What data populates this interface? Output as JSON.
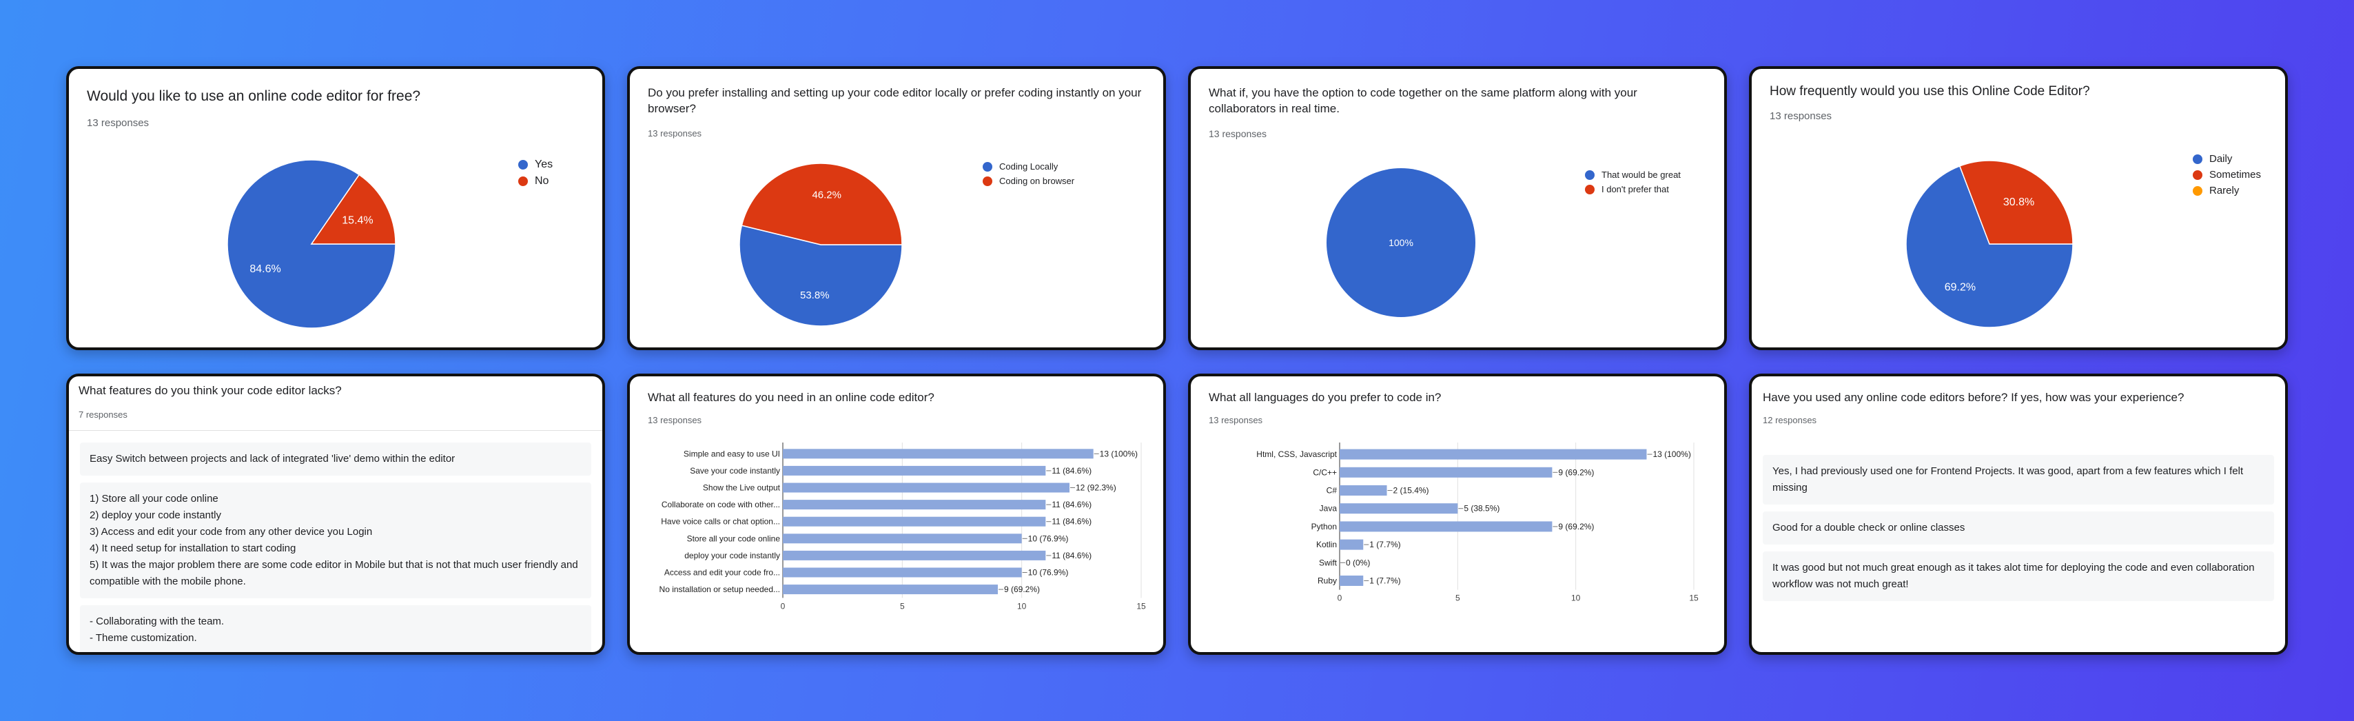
{
  "cards": {
    "c1": {
      "title": "Would you like to use an online code editor for free?",
      "responses": "13 responses",
      "chart": {
        "type": "pie",
        "labels": [
          "Yes",
          "No"
        ],
        "values": [
          84.6,
          15.4
        ],
        "data_labels": [
          "84.6%",
          "15.4%"
        ],
        "colors": [
          "#3366cc",
          "#dc3912"
        ]
      }
    },
    "c2": {
      "title": "Do you prefer installing and setting up your code editor locally or prefer coding instantly on your browser?",
      "responses": "13 responses",
      "chart": {
        "type": "pie",
        "labels": [
          "Coding Locally",
          "Coding on browser"
        ],
        "values": [
          53.8,
          46.2
        ],
        "data_labels": [
          "53.8%",
          "46.2%"
        ],
        "colors": [
          "#3366cc",
          "#dc3912"
        ]
      }
    },
    "c3": {
      "title": "What if, you have the option to code together on the same platform along with your collaborators in real time.",
      "responses": "13 responses",
      "chart": {
        "type": "pie",
        "labels": [
          "That would be great",
          "I don't prefer that"
        ],
        "values": [
          100,
          0
        ],
        "data_labels": [
          "100%",
          ""
        ],
        "colors": [
          "#3366cc",
          "#dc3912"
        ]
      }
    },
    "c4": {
      "title": "How frequently would you use this Online Code Editor?",
      "responses": "13 responses",
      "chart": {
        "type": "pie",
        "labels": [
          "Daily",
          "Sometimes",
          "Rarely"
        ],
        "values": [
          69.2,
          30.8,
          0
        ],
        "data_labels": [
          "69.2%",
          "30.8%",
          ""
        ],
        "colors": [
          "#3366cc",
          "#dc3912",
          "#ff9900"
        ]
      }
    },
    "c5": {
      "title": "What features do you think your code editor lacks?",
      "responses": "7 responses",
      "answers": [
        [
          "Easy Switch between projects and lack of integrated 'live' demo within the editor"
        ],
        [
          "1) Store all your code online",
          "2) deploy your code instantly",
          "3) Access and edit your code from any other device you Login",
          "4) It need setup for installation to start coding",
          "5) It was the major problem there are some code editor in Mobile but that is not that much user friendly and compatible with the mobile phone."
        ],
        [
          "- Collaborating with the team.",
          "- Theme customization."
        ]
      ]
    },
    "c6": {
      "title": "What all features do you need in an online code editor?",
      "responses": "13 responses",
      "chart": {
        "type": "bar",
        "categories": [
          "Simple and easy to use UI",
          "Save your code instantly",
          "Show the Live output",
          "Collaborate on code with other...",
          "Have voice calls or chat option...",
          "Store all your code online",
          "deploy your code instantly",
          "Access and edit your code fro...",
          "No installation or setup needed..."
        ],
        "values": [
          13,
          11,
          12,
          11,
          11,
          10,
          11,
          10,
          9
        ],
        "data_labels": [
          "13 (100%)",
          "11 (84.6%)",
          "12 (92.3%)",
          "11 (84.6%)",
          "11 (84.6%)",
          "10 (76.9%)",
          "11 (84.6%)",
          "10 (76.9%)",
          "9 (69.2%)"
        ],
        "xlim": [
          0,
          15
        ],
        "ticks": [
          "0",
          "5",
          "10",
          "15"
        ],
        "color": "#8ca7dc"
      }
    },
    "c7": {
      "title": "What all languages do you prefer to code in?",
      "responses": "13 responses",
      "chart": {
        "type": "bar",
        "categories": [
          "Html, CSS, Javascript",
          "C/C++",
          "C#",
          "Java",
          "Python",
          "Kotlin",
          "Swift",
          "Ruby"
        ],
        "values": [
          13,
          9,
          2,
          5,
          9,
          1,
          0,
          1
        ],
        "data_labels": [
          "13 (100%)",
          "9 (69.2%)",
          "2 (15.4%)",
          "5 (38.5%)",
          "9 (69.2%)",
          "1 (7.7%)",
          "0 (0%)",
          "1 (7.7%)"
        ],
        "xlim": [
          0,
          15
        ],
        "ticks": [
          "0",
          "5",
          "10",
          "15"
        ],
        "color": "#8ca7dc"
      }
    },
    "c8": {
      "title": "Have you used any online code editors before? If yes, how was your experience?",
      "responses": "12 responses",
      "answers": [
        [
          "Yes, I had previously used one for Frontend Projects. It was good, apart from a few features which I felt missing"
        ],
        [
          "Good for a double check or online classes"
        ],
        [
          "It was good but not much great enough as it takes alot time for deploying the code and even collaboration workflow was not much great!"
        ]
      ]
    }
  }
}
